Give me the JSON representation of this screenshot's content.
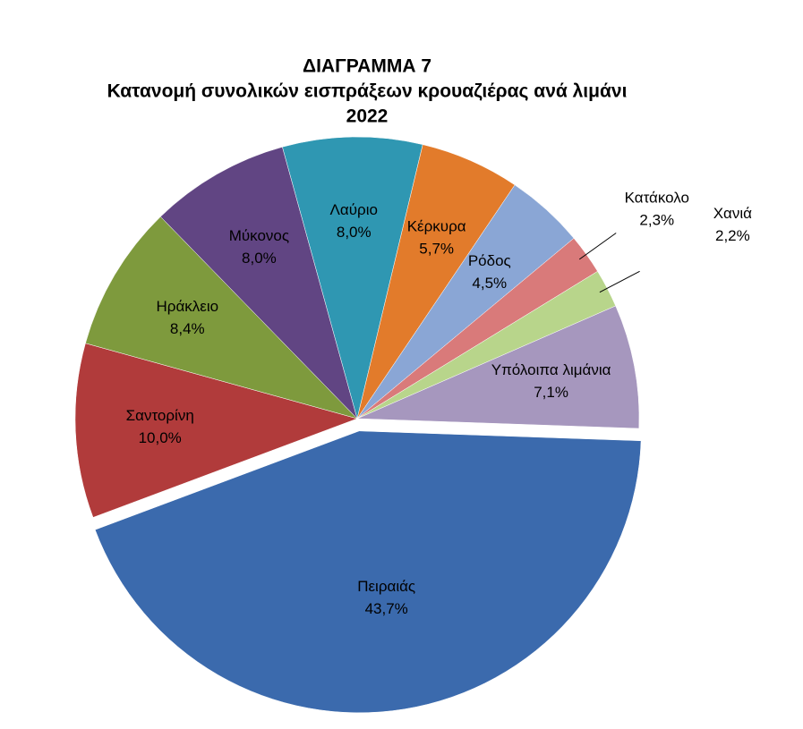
{
  "chart_data": {
    "type": "pie",
    "title": [
      "ΔΙΑΓΡΑΜΜΑ 7",
      "Κατανομή συνολικών εισπράξεων κρουαζιέρας ανά λιμάνι",
      "2022"
    ],
    "categories": [
      "Πειραιάς",
      "Σαντορίνη",
      "Ηράκλειο",
      "Μύκονος",
      "Λαύριο",
      "Κέρκυρα",
      "Ρόδος",
      "Κατάκολο",
      "Χανιά",
      "Υπόλοιπα λιμάνια"
    ],
    "values": [
      43.7,
      10.0,
      8.4,
      8.0,
      8.0,
      5.7,
      4.5,
      2.3,
      2.2,
      7.1
    ],
    "value_labels": [
      "43,7%",
      "10,0%",
      "8,4%",
      "8,0%",
      "8,0%",
      "5,7%",
      "4,5%",
      "2,3%",
      "2,2%",
      "7,1%"
    ],
    "colors": [
      "#3b6aad",
      "#b13b3b",
      "#7e9a3d",
      "#614583",
      "#2f97b2",
      "#e27b2b",
      "#8aa6d5",
      "#d97a7a",
      "#b8d58b",
      "#a697be"
    ],
    "exploded": [
      0
    ]
  }
}
